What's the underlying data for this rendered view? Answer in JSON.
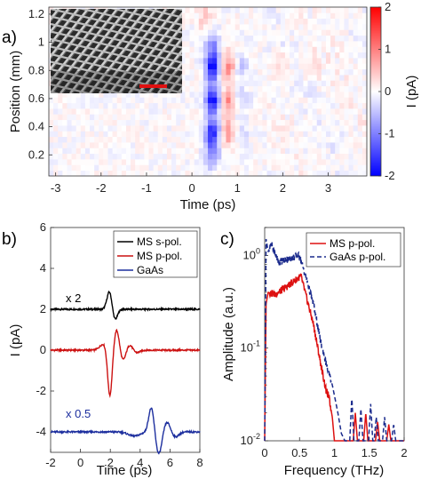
{
  "chart_data": [
    {
      "panel_label": "a)",
      "type": "heatmap",
      "xlabel": "Time (ps)",
      "ylabel": "Position (mm)",
      "xlim": [
        -3.15,
        3.85
      ],
      "ylim": [
        0.05,
        1.25
      ],
      "xticks": [
        -3,
        -2,
        -1,
        0,
        1,
        2,
        3
      ],
      "yticks": [
        0.2,
        0.4,
        0.6,
        0.8,
        1,
        1.2
      ],
      "colorbar": {
        "label": "I (pA)",
        "min": -2,
        "max": 2,
        "ticks": [
          -2,
          -1,
          0,
          1,
          2
        ],
        "colors": [
          "#0000ff",
          "#ffffff",
          "#ff0000"
        ]
      },
      "blobs": [
        {
          "t": 0.45,
          "y": 0.83,
          "value": -1.9
        },
        {
          "t": 0.45,
          "y": 0.59,
          "value": -1.9
        },
        {
          "t": 0.45,
          "y": 0.36,
          "value": -1.7
        },
        {
          "t": 0.45,
          "y": 0.2,
          "value": -0.9
        },
        {
          "t": 0.45,
          "y": 1.0,
          "value": -0.8
        },
        {
          "t": 0.8,
          "y": 0.83,
          "value": 0.9
        },
        {
          "t": 0.8,
          "y": 0.59,
          "value": 0.9
        },
        {
          "t": 0.8,
          "y": 0.36,
          "value": 0.8
        },
        {
          "t": 1.1,
          "y": 0.83,
          "value": -0.4
        },
        {
          "t": 1.1,
          "y": 0.59,
          "value": -0.4
        },
        {
          "t": 1.1,
          "y": 0.36,
          "value": -0.3
        },
        {
          "t": 0.3,
          "y": 1.18,
          "value": 0.5
        },
        {
          "t": 1.9,
          "y": 0.84,
          "value": 0.35
        },
        {
          "t": 2.7,
          "y": 0.84,
          "value": 0.25
        }
      ],
      "inset": "SEM micrograph of metasurface"
    },
    {
      "panel_label": "b)",
      "type": "line",
      "xlabel": "Time (ps)",
      "ylabel": "I (pA)",
      "xlim": [
        -2,
        8
      ],
      "ylim": [
        -5,
        6
      ],
      "xticks": [
        -2,
        0,
        2,
        4,
        6,
        8
      ],
      "yticks": [
        -4,
        -2,
        0,
        2,
        4,
        6
      ],
      "annotations": [
        {
          "text": "x 2",
          "t": -0.5,
          "y": 2.45,
          "color": "#000000"
        },
        {
          "text": "x 0.5",
          "t": -0.5,
          "y": -3.4,
          "color": "#1c2e9e"
        }
      ],
      "series": [
        {
          "name": "MS s-pol.",
          "color": "#000000",
          "baseline": 2,
          "pulses": [
            {
              "t0": 1.95,
              "amp": 0.9,
              "w": 0.17
            },
            {
              "t0": 2.3,
              "amp": -0.55,
              "w": 0.17
            }
          ]
        },
        {
          "name": "MS p-pol.",
          "color": "#cc1111",
          "baseline": 0,
          "pulses": [
            {
              "t0": 1.55,
              "amp": 0.3,
              "w": 0.25
            },
            {
              "t0": 1.97,
              "amp": -2.3,
              "w": 0.15
            },
            {
              "t0": 2.42,
              "amp": 1.0,
              "w": 0.17
            },
            {
              "t0": 2.85,
              "amp": -0.5,
              "w": 0.17
            },
            {
              "t0": 3.3,
              "amp": 0.25,
              "w": 0.17
            },
            {
              "t0": 3.8,
              "amp": -0.12,
              "w": 0.2
            }
          ]
        },
        {
          "name": "GaAs",
          "color": "#1c2e9e",
          "baseline": -4,
          "pulses": [
            {
              "t0": 3.6,
              "amp": -0.2,
              "w": 0.4
            },
            {
              "t0": 4.75,
              "amp": 1.2,
              "w": 0.18
            },
            {
              "t0": 5.25,
              "amp": -1.1,
              "w": 0.2
            },
            {
              "t0": 5.8,
              "amp": 0.5,
              "w": 0.22
            },
            {
              "t0": 6.35,
              "amp": -0.25,
              "w": 0.25
            }
          ]
        }
      ]
    },
    {
      "panel_label": "c)",
      "type": "line",
      "xlabel": "Frequency (THz)",
      "ylabel": "Amplitude (a.u.)",
      "xlim": [
        0,
        2
      ],
      "ylim": [
        0.01,
        2
      ],
      "yscale": "log",
      "xticks": [
        0,
        0.5,
        1,
        1.5,
        2
      ],
      "ytick_labels": [
        "10^0",
        "10^-1",
        "10^-2"
      ],
      "series": [
        {
          "name": "MS p-pol.",
          "color": "#dd1111",
          "dash": false,
          "envelope": [
            [
              0.0,
              0.01
            ],
            [
              0.02,
              0.3
            ],
            [
              0.05,
              0.4
            ],
            [
              0.15,
              0.38
            ],
            [
              0.3,
              0.45
            ],
            [
              0.45,
              0.55
            ],
            [
              0.52,
              0.6
            ],
            [
              0.6,
              0.35
            ],
            [
              0.7,
              0.18
            ],
            [
              0.8,
              0.07
            ],
            [
              0.88,
              0.035
            ],
            [
              0.92,
              0.03
            ],
            [
              0.97,
              0.018
            ],
            [
              1.0,
              0.01
            ]
          ]
        },
        {
          "name": "GaAs p-pol.",
          "color": "#1a2a8c",
          "dash": true,
          "envelope": [
            [
              0.0,
              0.01
            ],
            [
              0.02,
              1.5
            ],
            [
              0.05,
              1.1
            ],
            [
              0.1,
              1.3
            ],
            [
              0.2,
              0.85
            ],
            [
              0.3,
              0.9
            ],
            [
              0.5,
              1.0
            ],
            [
              0.6,
              0.55
            ],
            [
              0.7,
              0.3
            ],
            [
              0.8,
              0.12
            ],
            [
              0.9,
              0.06
            ],
            [
              0.97,
              0.04
            ],
            [
              1.05,
              0.02
            ],
            [
              1.1,
              0.012
            ],
            [
              1.15,
              0.01
            ]
          ]
        }
      ],
      "noise_bursts": [
        {
          "series": 0,
          "f": [
            1.3,
            1.45,
            1.62,
            1.78
          ],
          "peaks": [
            0.02,
            0.02,
            0.016,
            0.015
          ]
        },
        {
          "series": 1,
          "f": [
            1.25,
            1.38,
            1.52,
            1.6,
            1.72,
            1.85
          ],
          "peaks": [
            0.03,
            0.022,
            0.025,
            0.018,
            0.018,
            0.015
          ]
        }
      ]
    }
  ]
}
